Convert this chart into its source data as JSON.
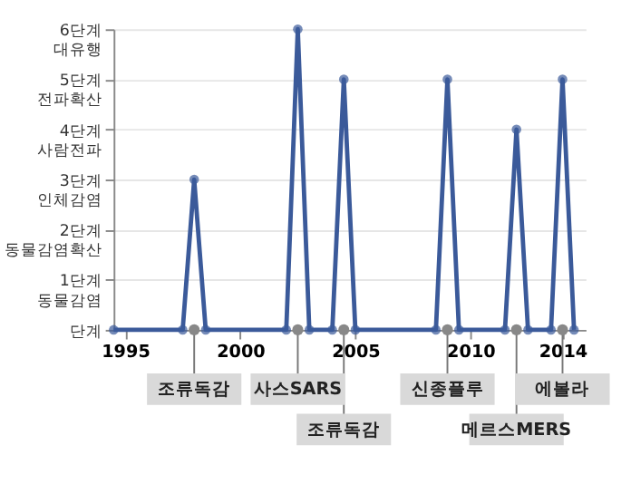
{
  "chart_data": {
    "type": "line",
    "x": [
      1994.5,
      1997.5,
      1998,
      1998.5,
      2002,
      2002.5,
      2003,
      2004,
      2004.5,
      2005,
      2008.5,
      2009,
      2009.5,
      2011.5,
      2012,
      2012.5,
      2013.5,
      2014,
      2014.5
    ],
    "series": [
      {
        "color": "#3b5a9a",
        "values": [
          0,
          0,
          3,
          0,
          0,
          6,
          0,
          0,
          5,
          0,
          0,
          5,
          0,
          0,
          4,
          0,
          0,
          5,
          0
        ]
      }
    ],
    "xlim": [
      1994.5,
      2015
    ],
    "xticks": [
      1995,
      2000,
      2005,
      2010,
      2014
    ],
    "ylim": [
      0,
      6
    ],
    "yticks": [
      {
        "value": 0,
        "label": "단계"
      },
      {
        "value": 1,
        "label": "1단계\n동물감염"
      },
      {
        "value": 2,
        "label": "2단계\n동물감염확산"
      },
      {
        "value": 3,
        "label": "3단계\n인체감염"
      },
      {
        "value": 4,
        "label": "4단계\n사람전파"
      },
      {
        "value": 5,
        "label": "5단계\n전파확산"
      },
      {
        "value": 6,
        "label": "6단계\n대유행"
      }
    ],
    "grid": "y",
    "marker": "circle",
    "line_style": "solid",
    "annotations": [
      {
        "text": "조류독감",
        "x": 1998,
        "y": 0
      },
      {
        "text": "사스SARS",
        "x": 2002.5,
        "y": 0
      },
      {
        "text": "조류독감",
        "x": 2004.5,
        "y": 0
      },
      {
        "text": "신종플루",
        "x": 2009,
        "y": 0
      },
      {
        "text": "메르스MERS",
        "x": 2012,
        "y": 0
      },
      {
        "text": "에볼라",
        "x": 2014,
        "y": 0
      }
    ]
  }
}
